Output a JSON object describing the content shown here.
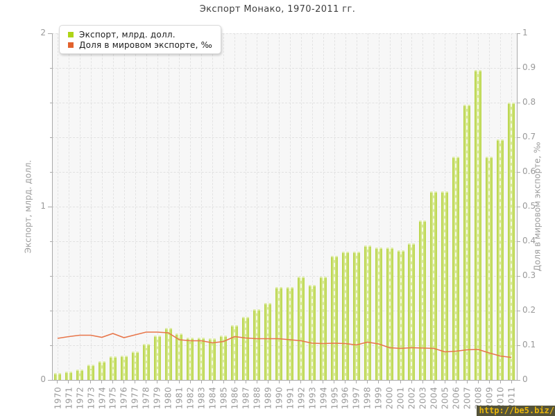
{
  "title": "Экспорт Монако, 1970-2011 гг.",
  "watermark": "http://be5.biz/",
  "legend": {
    "position": "top-left",
    "items": [
      {
        "label": "Экспорт, млрд. долл.",
        "swatch": "#aed416"
      },
      {
        "label": "Доля в мировом экспорте, ‰",
        "swatch": "#e2622d"
      }
    ]
  },
  "chart_data": {
    "type": "bar",
    "title": "Экспорт Монако, 1970-2011 гг.",
    "categories": [
      "1970",
      "1971",
      "1972",
      "1973",
      "1974",
      "1975",
      "1976",
      "1977",
      "1978",
      "1979",
      "1980",
      "1981",
      "1982",
      "1983",
      "1984",
      "1985",
      "1986",
      "1987",
      "1988",
      "1989",
      "1990",
      "1991",
      "1992",
      "1993",
      "1994",
      "1995",
      "1996",
      "1997",
      "1998",
      "1999",
      "2000",
      "2001",
      "2002",
      "2003",
      "2004",
      "2005",
      "2006",
      "2007",
      "2008",
      "2009",
      "2010",
      "2011"
    ],
    "series": [
      {
        "name": "Экспорт, млрд. долл.",
        "type": "bar",
        "axis": "left",
        "color": "#c9e065",
        "values": [
          0.04,
          0.05,
          0.06,
          0.09,
          0.11,
          0.135,
          0.14,
          0.165,
          0.21,
          0.255,
          0.3,
          0.27,
          0.245,
          0.245,
          0.24,
          0.255,
          0.315,
          0.365,
          0.41,
          0.445,
          0.535,
          0.535,
          0.595,
          0.55,
          0.595,
          0.715,
          0.74,
          0.74,
          0.775,
          0.765,
          0.765,
          0.75,
          0.79,
          0.92,
          1.09,
          1.09,
          1.29,
          1.59,
          1.79,
          1.29,
          1.39,
          1.6
        ]
      },
      {
        "name": "Доля в мировом экспорте, ‰",
        "type": "line",
        "axis": "right",
        "color": "#e8764a",
        "values": [
          0.12,
          0.125,
          0.129,
          0.129,
          0.123,
          0.134,
          0.122,
          0.13,
          0.138,
          0.138,
          0.136,
          0.116,
          0.113,
          0.113,
          0.107,
          0.111,
          0.125,
          0.121,
          0.119,
          0.119,
          0.119,
          0.116,
          0.113,
          0.106,
          0.105,
          0.106,
          0.105,
          0.101,
          0.109,
          0.104,
          0.093,
          0.091,
          0.093,
          0.092,
          0.091,
          0.081,
          0.083,
          0.087,
          0.088,
          0.078,
          0.069,
          0.065
        ]
      }
    ],
    "left_axis": {
      "label": "Экспорт, млрд. долл.",
      "min": 0,
      "max": 2,
      "tick_labels": [
        "2",
        "1",
        "0"
      ]
    },
    "right_axis": {
      "label": "Доля в мировом экспорте, ‰",
      "min": 0,
      "max": 1,
      "tick_labels": [
        "1",
        "0.9",
        "0.8",
        "0.7",
        "0.6",
        "0.5",
        "0.4",
        "0.3",
        "0.2",
        "0.1",
        "0"
      ]
    },
    "grid": true,
    "legend_position": "top-left"
  }
}
